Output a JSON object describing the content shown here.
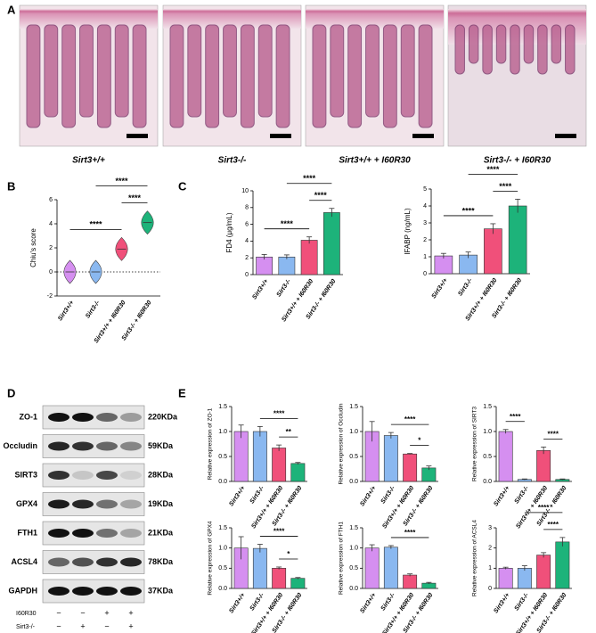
{
  "panel_labels": [
    "A",
    "B",
    "C",
    "D",
    "E"
  ],
  "histology": {
    "captions": [
      "Sirt3+/+",
      "Sirt3-/-",
      "Sirt3+/+ + I60R30",
      "Sirt3-/- + I60R30"
    ]
  },
  "chart_data": [
    {
      "type": "violin",
      "ylabel": "Chiu's score",
      "categories": [
        "Sirt3+/+",
        "Sirt3-/-",
        "Sirt3+/+ + I60R30",
        "Sirt3-/- + I60R30"
      ],
      "values": [
        0,
        0,
        1.9,
        4.1
      ],
      "colors": [
        "#d58ff0",
        "#8ab8f0",
        "#f0507a",
        "#1db37a"
      ],
      "ylim": [
        -2,
        6
      ],
      "yticks": [
        -2,
        0,
        2,
        4,
        6
      ],
      "reference_line": 0,
      "annotations": [
        {
          "from": "Sirt3+/+",
          "to": "Sirt3+/+ + I60R30",
          "text": "****"
        },
        {
          "from": "Sirt3+/+ + I60R30",
          "to": "Sirt3-/- + I60R30",
          "text": "****"
        },
        {
          "from": "Sirt3-/-",
          "to": "Sirt3-/- + I60R30",
          "text": "****"
        }
      ]
    },
    {
      "type": "bar",
      "ylabel": "FD4 (μg/mL)",
      "categories": [
        "Sirt3+/+",
        "Sirt3-/-",
        "Sirt3+/+ + I60R30",
        "Sirt3-/- + I60R30"
      ],
      "values": [
        2.1,
        2.1,
        4.1,
        7.4
      ],
      "errors": [
        0.3,
        0.25,
        0.4,
        0.5
      ],
      "colors": [
        "#d58ff0",
        "#8ab8f0",
        "#f0507a",
        "#1db37a"
      ],
      "ylim": [
        0,
        10
      ],
      "yticks": [
        0,
        2,
        4,
        6,
        8,
        10
      ],
      "annotations": [
        {
          "from": "Sirt3+/+",
          "to": "Sirt3+/+ + I60R30",
          "text": "****"
        },
        {
          "from": "Sirt3+/+ + I60R30",
          "to": "Sirt3-/- + I60R30",
          "text": "****"
        },
        {
          "from": "Sirt3-/-",
          "to": "Sirt3-/- + I60R30",
          "text": "****"
        }
      ]
    },
    {
      "type": "bar",
      "ylabel": "IFABP (ng/mL)",
      "categories": [
        "Sirt3+/+",
        "Sirt3-/-",
        "Sirt3+/+ + I60R30",
        "Sirt3-/- + I60R30"
      ],
      "values": [
        1.05,
        1.1,
        2.65,
        4.0
      ],
      "errors": [
        0.15,
        0.18,
        0.3,
        0.4
      ],
      "colors": [
        "#d58ff0",
        "#8ab8f0",
        "#f0507a",
        "#1db37a"
      ],
      "ylim": [
        0,
        5
      ],
      "yticks": [
        0,
        1,
        2,
        3,
        4,
        5
      ],
      "annotations": [
        {
          "from": "Sirt3+/+",
          "to": "Sirt3+/+ + I60R30",
          "text": "****"
        },
        {
          "from": "Sirt3+/+ + I60R30",
          "to": "Sirt3-/- + I60R30",
          "text": "****"
        },
        {
          "from": "Sirt3-/-",
          "to": "Sirt3-/- + I60R30",
          "text": "****"
        }
      ]
    },
    {
      "type": "bar",
      "ylabel": "Relative expression of ZO-1",
      "categories": [
        "Sirt3+/+",
        "Sirt3-/-",
        "Sirt3+/+ + I60R30",
        "Sirt3-/- + I60R30"
      ],
      "values": [
        1.0,
        1.0,
        0.67,
        0.36
      ],
      "errors": [
        0.13,
        0.1,
        0.06,
        0.02
      ],
      "colors": [
        "#d58ff0",
        "#8ab8f0",
        "#f0507a",
        "#1db37a"
      ],
      "ylim": [
        0,
        1.5
      ],
      "yticks": [
        {
          "value": 0,
          "label": "0.0"
        },
        {
          "value": 0.5,
          "label": "0.5"
        },
        {
          "value": 1,
          "label": "1.0"
        },
        {
          "value": 1.5,
          "label": "1.5"
        }
      ],
      "annotations": [
        {
          "from": "Sirt3+/+ + I60R30",
          "to": "Sirt3-/- + I60R30",
          "text": "**"
        },
        {
          "from": "Sirt3-/-",
          "to": "Sirt3-/- + I60R30",
          "text": "****"
        }
      ]
    },
    {
      "type": "bar",
      "ylabel": "Relative expression of Occludin",
      "categories": [
        "Sirt3+/+",
        "Sirt3-/-",
        "Sirt3+/+ + I60R30",
        "Sirt3-/- + I60R30"
      ],
      "values": [
        1.0,
        0.92,
        0.55,
        0.27
      ],
      "errors": [
        0.2,
        0.06,
        0.01,
        0.04
      ],
      "colors": [
        "#d58ff0",
        "#8ab8f0",
        "#f0507a",
        "#1db37a"
      ],
      "ylim": [
        0,
        1.5
      ],
      "yticks": [
        {
          "value": 0,
          "label": "0.0"
        },
        {
          "value": 0.5,
          "label": "0.5"
        },
        {
          "value": 1,
          "label": "1.0"
        },
        {
          "value": 1.5,
          "label": "1.5"
        }
      ],
      "annotations": [
        {
          "from": "Sirt3+/+ + I60R30",
          "to": "Sirt3-/- + I60R30",
          "text": "*"
        },
        {
          "from": "Sirt3-/-",
          "to": "Sirt3-/- + I60R30",
          "text": "****"
        }
      ]
    },
    {
      "type": "bar",
      "ylabel": "Relative expression of SIRT3",
      "categories": [
        "Sirt3+/+",
        "Sirt3-/-",
        "Sirt3+/+ + I60R30",
        "Sirt3-/- + I60R30"
      ],
      "values": [
        1.0,
        0.04,
        0.62,
        0.04
      ],
      "errors": [
        0.04,
        0.01,
        0.07,
        0.01
      ],
      "colors": [
        "#d58ff0",
        "#8ab8f0",
        "#f0507a",
        "#1db37a"
      ],
      "ylim": [
        0,
        1.5
      ],
      "yticks": [
        {
          "value": 0,
          "label": "0.0"
        },
        {
          "value": 0.5,
          "label": "0.5"
        },
        {
          "value": 1,
          "label": "1.0"
        },
        {
          "value": 1.5,
          "label": "1.5"
        }
      ],
      "annotations": [
        {
          "from": "Sirt3+/+",
          "to": "Sirt3-/-",
          "text": "****"
        },
        {
          "from": "Sirt3+/+ + I60R30",
          "to": "Sirt3-/- + I60R30",
          "text": "****"
        }
      ]
    },
    {
      "type": "bar",
      "ylabel": "Relative expression of GPX4",
      "categories": [
        "Sirt3+/+",
        "Sirt3-/-",
        "Sirt3+/+ + I60R30",
        "Sirt3-/- + I60R30"
      ],
      "values": [
        1.0,
        0.99,
        0.5,
        0.25
      ],
      "errors": [
        0.28,
        0.1,
        0.03,
        0.02
      ],
      "colors": [
        "#d58ff0",
        "#8ab8f0",
        "#f0507a",
        "#1db37a"
      ],
      "ylim": [
        0,
        1.5
      ],
      "yticks": [
        {
          "value": 0,
          "label": "0.0"
        },
        {
          "value": 0.5,
          "label": "0.5"
        },
        {
          "value": 1,
          "label": "1.0"
        },
        {
          "value": 1.5,
          "label": "1.5"
        }
      ],
      "annotations": [
        {
          "from": "Sirt3+/+ + I60R30",
          "to": "Sirt3-/- + I60R30",
          "text": "*"
        },
        {
          "from": "Sirt3-/-",
          "to": "Sirt3-/- + I60R30",
          "text": "****"
        }
      ]
    },
    {
      "type": "bar",
      "ylabel": "Relative expression of FTH1",
      "categories": [
        "Sirt3+/+",
        "Sirt3-/-",
        "Sirt3+/+ + I60R30",
        "Sirt3-/- + I60R30"
      ],
      "values": [
        1.0,
        1.02,
        0.33,
        0.13
      ],
      "errors": [
        0.08,
        0.04,
        0.03,
        0.02
      ],
      "colors": [
        "#d58ff0",
        "#8ab8f0",
        "#f0507a",
        "#1db37a"
      ],
      "ylim": [
        0,
        1.5
      ],
      "yticks": [
        {
          "value": 0,
          "label": "0.0"
        },
        {
          "value": 0.5,
          "label": "0.5"
        },
        {
          "value": 1,
          "label": "1.0"
        },
        {
          "value": 1.5,
          "label": "1.5"
        }
      ],
      "annotations": [
        {
          "from": "Sirt3-/-",
          "to": "Sirt3-/- + I60R30",
          "text": "****"
        }
      ]
    },
    {
      "type": "bar",
      "ylabel": "Relative expression of ACSL4",
      "categories": [
        "Sirt3+/+",
        "Sirt3-/-",
        "Sirt3+/+ + I60R30",
        "Sirt3-/- + I60R30"
      ],
      "values": [
        1.0,
        1.0,
        1.65,
        2.3
      ],
      "errors": [
        0.05,
        0.12,
        0.12,
        0.22
      ],
      "colors": [
        "#d58ff0",
        "#8ab8f0",
        "#f0507a",
        "#1db37a"
      ],
      "ylim": [
        0,
        3
      ],
      "yticks": [
        0,
        1,
        2,
        3
      ],
      "annotations": [
        {
          "from": "Sirt3+/+ + I60R30",
          "to": "Sirt3-/- + I60R30",
          "text": "****"
        },
        {
          "from": "Sirt3-/-",
          "to": "Sirt3-/- + I60R30",
          "text": "****"
        }
      ]
    }
  ],
  "western_blot": {
    "rows": [
      {
        "protein": "ZO-1",
        "size": "220KDa"
      },
      {
        "protein": "Occludin",
        "size": "59KDa"
      },
      {
        "protein": "SIRT3",
        "size": "28KDa"
      },
      {
        "protein": "GPX4",
        "size": "19KDa"
      },
      {
        "protein": "FTH1",
        "size": "21KDa"
      },
      {
        "protein": "ACSL4",
        "size": "78KDa"
      },
      {
        "protein": "GAPDH",
        "size": "37KDa"
      }
    ],
    "conditions": [
      {
        "name": "I60R30",
        "signs": [
          "−",
          "−",
          "+",
          "+"
        ]
      },
      {
        "name": "Sirt3-/-",
        "signs": [
          "−",
          "+",
          "−",
          "+"
        ]
      }
    ]
  }
}
